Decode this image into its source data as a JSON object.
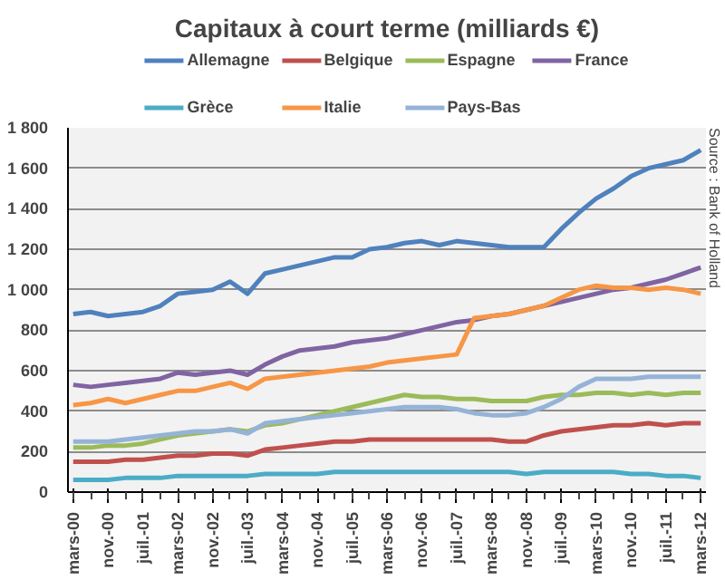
{
  "chart_data": {
    "type": "line",
    "title": "Capitaux à court terme (milliards €)",
    "categories": [
      "mars-00",
      null,
      "nov.-00",
      null,
      "juil.-01",
      null,
      "mars-02",
      null,
      "nov.-02",
      null,
      "juil.-03",
      null,
      "mars-04",
      null,
      "nov.-04",
      null,
      "juil.-05",
      null,
      "mars-06",
      null,
      "nov.-06",
      null,
      "juil.-07",
      null,
      "mars-08",
      null,
      "nov.-08",
      null,
      "juil.-09",
      null,
      "mars-10",
      null,
      "nov.-10",
      null,
      "juil.-11",
      null,
      "mars-12"
    ],
    "series": [
      {
        "name": "Allemagne",
        "color": "#4f81bd",
        "values": [
          880,
          890,
          870,
          880,
          890,
          920,
          980,
          990,
          1000,
          1040,
          980,
          1080,
          1100,
          1120,
          1140,
          1160,
          1160,
          1200,
          1210,
          1230,
          1240,
          1220,
          1240,
          1230,
          1220,
          1210,
          1210,
          1210,
          1300,
          1380,
          1450,
          1500,
          1560,
          1600,
          1620,
          1640,
          1690
        ]
      },
      {
        "name": "Belgique",
        "color": "#c0504d",
        "values": [
          150,
          150,
          150,
          160,
          160,
          170,
          180,
          180,
          190,
          190,
          180,
          210,
          220,
          230,
          240,
          250,
          250,
          260,
          260,
          260,
          260,
          260,
          260,
          260,
          260,
          250,
          250,
          280,
          300,
          310,
          320,
          330,
          330,
          340,
          330,
          340,
          340
        ]
      },
      {
        "name": "Espagne",
        "color": "#9bbb59",
        "values": [
          220,
          220,
          230,
          230,
          240,
          260,
          280,
          290,
          300,
          310,
          300,
          330,
          340,
          360,
          380,
          400,
          420,
          440,
          460,
          480,
          470,
          470,
          460,
          460,
          450,
          450,
          450,
          470,
          480,
          480,
          490,
          490,
          480,
          490,
          480,
          490,
          490
        ]
      },
      {
        "name": "France",
        "color": "#8064a2",
        "values": [
          530,
          520,
          530,
          540,
          550,
          560,
          590,
          580,
          590,
          600,
          580,
          630,
          670,
          700,
          710,
          720,
          740,
          750,
          760,
          780,
          800,
          820,
          840,
          850,
          870,
          880,
          900,
          920,
          940,
          960,
          980,
          1000,
          1010,
          1030,
          1050,
          1080,
          1110
        ]
      },
      {
        "name": "Grèce",
        "color": "#4bacc6",
        "values": [
          60,
          60,
          60,
          70,
          70,
          70,
          80,
          80,
          80,
          80,
          80,
          90,
          90,
          90,
          90,
          100,
          100,
          100,
          100,
          100,
          100,
          100,
          100,
          100,
          100,
          100,
          90,
          100,
          100,
          100,
          100,
          100,
          90,
          90,
          80,
          80,
          70
        ]
      },
      {
        "name": "Italie",
        "color": "#f79646",
        "values": [
          430,
          440,
          460,
          440,
          460,
          480,
          500,
          500,
          520,
          540,
          510,
          560,
          570,
          580,
          590,
          600,
          610,
          620,
          640,
          650,
          660,
          670,
          680,
          860,
          870,
          880,
          900,
          920,
          960,
          1000,
          1020,
          1010,
          1010,
          1000,
          1010,
          1000,
          980
        ]
      },
      {
        "name": "Pays-Bas",
        "color": "#95b3d7",
        "values": [
          250,
          250,
          250,
          260,
          270,
          280,
          290,
          300,
          300,
          310,
          290,
          340,
          350,
          360,
          370,
          380,
          390,
          400,
          410,
          420,
          420,
          420,
          410,
          390,
          380,
          380,
          390,
          420,
          460,
          520,
          560,
          560,
          560,
          570,
          570,
          570,
          570
        ]
      }
    ],
    "ylim": [
      0,
      1800
    ],
    "yticks": [
      0,
      {
        "value": 200,
        "label": "200"
      },
      400,
      600,
      800,
      {
        "value": 1000,
        "label": "1 000"
      },
      {
        "value": 1200,
        "label": "1 200"
      },
      {
        "value": 1400,
        "label": "1 400"
      },
      {
        "value": 1600,
        "label": "1 600"
      },
      {
        "value": 1800,
        "label": "1 800"
      }
    ],
    "grid": "y",
    "legend": "top",
    "marker": "none",
    "line_style": "solid",
    "annotations": [
      "Source : Bank of Holland"
    ]
  }
}
